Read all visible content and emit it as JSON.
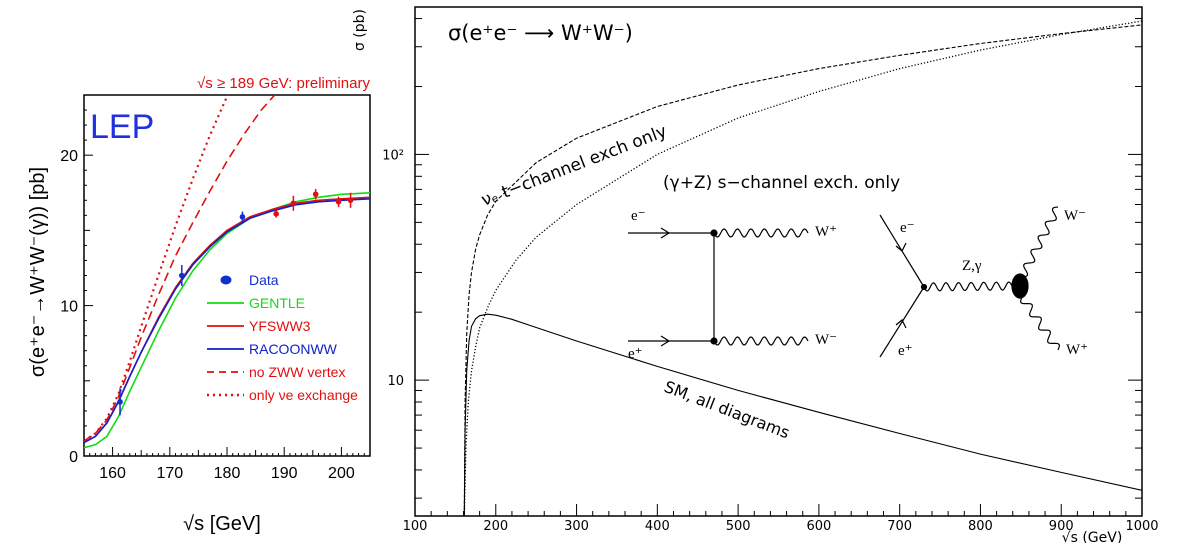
{
  "chart_data": [
    {
      "type": "line",
      "preliminary_note": "√s ≥ 189 GeV: preliminary",
      "experiment_label": "LEP",
      "xlabel": "√s   [GeV]",
      "ylabel": "σ(e⁺e⁻→W⁺W⁻(γ))   [pb]",
      "xlim": [
        155,
        205
      ],
      "ylim": [
        0,
        24
      ],
      "x_ticks": [
        "160",
        "170",
        "180",
        "190",
        "200"
      ],
      "y_ticks": [
        "0",
        "10",
        "20"
      ],
      "legend": [
        "Data",
        "GENTLE",
        "YFSWW3",
        "RACOONWW",
        "no ZWW vertex",
        "only νe exchange"
      ],
      "legend_position": "lower-right",
      "colors": {
        "data": "#1030d0",
        "gentle": "#10dd10",
        "yfsww3": "#e01010",
        "racoonww": "#1020cc",
        "no_zww": "#e01010",
        "only_nu": "#e01010",
        "lep": "#2030e0"
      },
      "data_points": [
        {
          "x": 161.3,
          "y": 3.6,
          "err": 0.9,
          "color": "#1030d0"
        },
        {
          "x": 172.1,
          "y": 12.0,
          "err": 0.7,
          "color": "#1030d0"
        },
        {
          "x": 182.7,
          "y": 15.9,
          "err": 0.35,
          "color": "#1030d0"
        },
        {
          "x": 188.6,
          "y": 16.1,
          "err": 0.25,
          "color": "#e01010"
        },
        {
          "x": 191.6,
          "y": 16.8,
          "err": 0.5,
          "color": "#e01010"
        },
        {
          "x": 195.5,
          "y": 17.4,
          "err": 0.35,
          "color": "#e01010"
        },
        {
          "x": 199.5,
          "y": 16.9,
          "err": 0.35,
          "color": "#e01010"
        },
        {
          "x": 201.6,
          "y": 17.0,
          "err": 0.5,
          "color": "#e01010"
        }
      ],
      "series": [
        {
          "name": "GENTLE",
          "style": "solid",
          "color": "#10dd10",
          "x": [
            155,
            157,
            159,
            161,
            163,
            165,
            168,
            171,
            174,
            177,
            180,
            184,
            188,
            192,
            196,
            200,
            205
          ],
          "y": [
            0.55,
            0.75,
            1.3,
            2.6,
            4.3,
            5.9,
            8.3,
            10.5,
            12.3,
            13.7,
            14.8,
            15.8,
            16.4,
            16.9,
            17.2,
            17.4,
            17.5
          ]
        },
        {
          "name": "YFSWW3",
          "style": "solid",
          "color": "#e01010",
          "x": [
            155,
            157,
            159,
            161,
            163,
            165,
            168,
            171,
            174,
            177,
            180,
            184,
            188,
            192,
            196,
            200,
            205
          ],
          "y": [
            0.9,
            1.3,
            2.2,
            3.6,
            5.3,
            6.9,
            9.2,
            11.2,
            12.8,
            14.0,
            15.0,
            15.9,
            16.4,
            16.8,
            17.0,
            17.1,
            17.2
          ]
        },
        {
          "name": "RACOONWW",
          "style": "solid",
          "color": "#1020cc",
          "x": [
            155,
            157,
            159,
            161,
            163,
            165,
            168,
            171,
            174,
            177,
            180,
            184,
            188,
            192,
            196,
            200,
            205
          ],
          "y": [
            0.9,
            1.3,
            2.2,
            3.6,
            5.3,
            6.9,
            9.1,
            11.1,
            12.7,
            13.9,
            14.9,
            15.8,
            16.3,
            16.7,
            16.9,
            17.0,
            17.1
          ]
        },
        {
          "name": "no ZWW vertex",
          "style": "dashed",
          "color": "#e01010",
          "x": [
            155,
            157,
            159,
            161,
            163,
            165,
            168,
            171,
            174,
            177,
            180,
            183,
            186,
            189.5
          ],
          "y": [
            1.0,
            1.5,
            2.4,
            3.9,
            5.9,
            7.9,
            10.7,
            13.3,
            15.5,
            17.6,
            19.6,
            21.4,
            23.0,
            24.5
          ]
        },
        {
          "name": "only νe exchange",
          "style": "dotted",
          "color": "#e01010",
          "x": [
            155,
            157,
            159,
            161,
            163,
            165,
            168,
            171,
            174,
            177,
            180,
            182.5
          ],
          "y": [
            1.0,
            1.5,
            2.5,
            4.1,
            6.3,
            8.6,
            12.0,
            15.3,
            18.4,
            21.3,
            23.9,
            25.5
          ]
        }
      ]
    },
    {
      "type": "line",
      "title": "σ(e⁺e⁻ ⟶ W⁺W⁻)",
      "ylabel": "σ (pb)",
      "xlabel": "√s (GeV)",
      "x_ticks": [
        "100",
        "200",
        "300",
        "400",
        "500",
        "600",
        "700",
        "800",
        "900",
        "1000"
      ],
      "y_ticks": [
        "10",
        "10²"
      ],
      "xlim": [
        100,
        1000
      ],
      "ylim": [
        2.5,
        450
      ],
      "y_scale": "log",
      "annotations": [
        "νₑ t−channel exch only",
        "(γ+Z) s−channel exch. only",
        "SM, all diagrams"
      ],
      "diagram_labels": {
        "t_channel": {
          "em_in": "e⁻",
          "ep_in": "e⁺",
          "wp_out": "W⁺",
          "wm_out": "W⁻"
        },
        "s_channel": {
          "em_in": "e⁻",
          "ep_in": "e⁺",
          "boson": "Z,γ",
          "wm_out": "W⁻",
          "wp_out": "W⁺"
        }
      },
      "series": [
        {
          "name": "νₑ t−channel exch only",
          "style": "dashed",
          "x": [
            161,
            162,
            164,
            167,
            170,
            175,
            180,
            190,
            200,
            250,
            300,
            400,
            500,
            600,
            700,
            800,
            900,
            1000
          ],
          "y": [
            2.5,
            8,
            16,
            24,
            30,
            38,
            44,
            54,
            62,
            92,
            118,
            163,
            203,
            240,
            275,
            310,
            343,
            375
          ]
        },
        {
          "name": "(γ+Z) s−channel exch. only",
          "style": "dotted",
          "x": [
            161,
            163,
            166,
            170,
            175,
            180,
            190,
            200,
            225,
            250,
            300,
            400,
            500,
            600,
            700,
            800,
            900,
            1000
          ],
          "y": [
            2.5,
            5,
            8,
            11,
            14,
            17,
            21,
            25,
            34,
            43,
            60,
            100,
            145,
            190,
            240,
            290,
            340,
            390
          ]
        },
        {
          "name": "SM, all diagrams",
          "style": "solid",
          "x": [
            161,
            162,
            164,
            167,
            170,
            175,
            180,
            190,
            200,
            220,
            250,
            300,
            400,
            500,
            600,
            700,
            800,
            900,
            1000
          ],
          "y": [
            2.5,
            6,
            11,
            15,
            17.3,
            18.7,
            19.3,
            19.6,
            19.4,
            18.6,
            17.1,
            14.9,
            11.5,
            9.0,
            7.2,
            5.8,
            4.7,
            3.9,
            3.25
          ]
        }
      ]
    }
  ]
}
